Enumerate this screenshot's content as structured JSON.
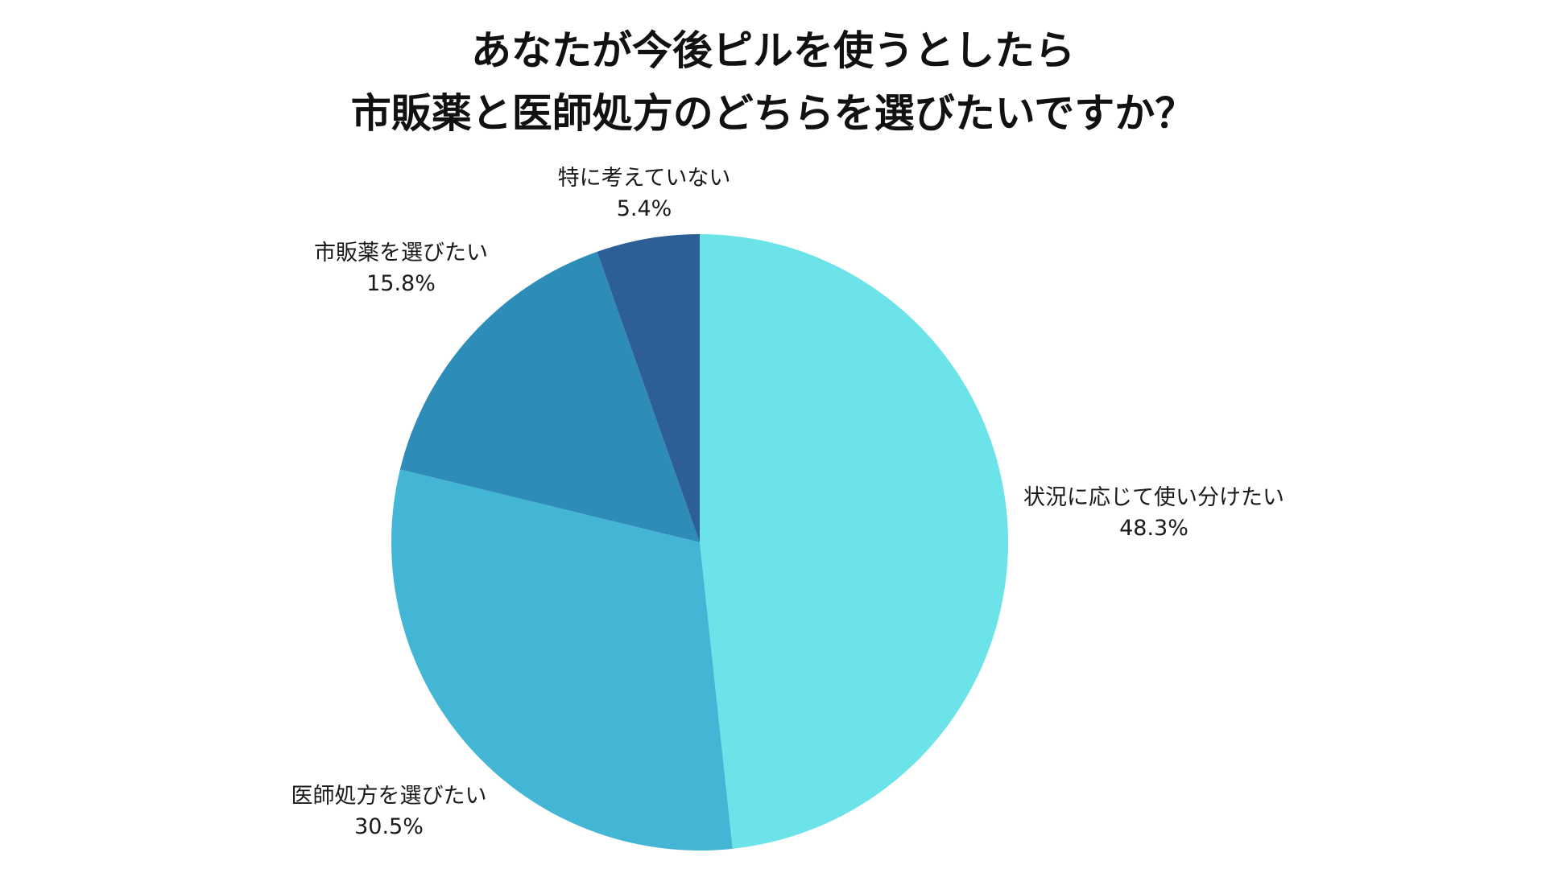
{
  "chart_data": {
    "type": "pie",
    "title_lines": [
      "あなたが今後ピルを使うとしたら",
      "市販薬と医師処方のどちらを選びたいですか？"
    ],
    "start_angle_deg": 0,
    "direction": "clockwise",
    "slices": [
      {
        "label": "状況に応じて使い分けたい",
        "value": 48.3,
        "display": "48.3%",
        "color": "#6ce3e8"
      },
      {
        "label": "医師処方を選びたい",
        "value": 30.5,
        "display": "30.5%",
        "color": "#43b6d5"
      },
      {
        "label": "市販薬を選びたい",
        "value": 15.8,
        "display": "15.8%",
        "color": "#2e8cb8"
      },
      {
        "label": "特に考えていない",
        "value": 5.4,
        "display": "5.4%",
        "color": "#2d5e95"
      }
    ]
  }
}
